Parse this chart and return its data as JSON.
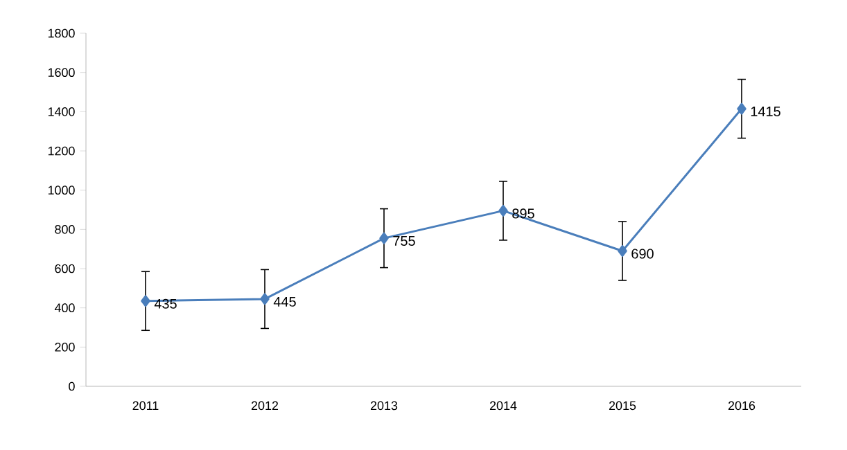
{
  "chart_data": {
    "type": "line",
    "categories": [
      "2011",
      "2012",
      "2013",
      "2014",
      "2015",
      "2016"
    ],
    "values": [
      435,
      445,
      755,
      895,
      690,
      1415
    ],
    "errors": [
      150,
      150,
      150,
      150,
      150,
      150
    ],
    "color": "#4a7ebb",
    "marker": "diamond",
    "data_labels": true,
    "ylim": [
      0,
      1800
    ],
    "yticks": [
      0,
      200,
      400,
      600,
      800,
      1000,
      1200,
      1400,
      1600,
      1800
    ],
    "grid": false
  }
}
